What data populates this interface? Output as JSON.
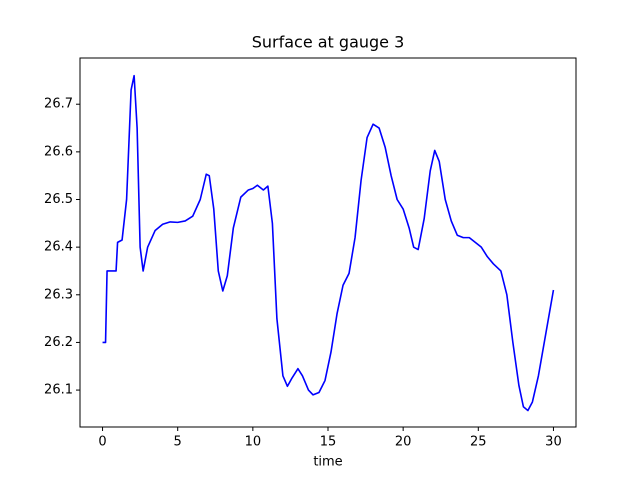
{
  "chart_data": {
    "type": "line",
    "title": "Surface at gauge 3",
    "xlabel": "time",
    "color": "#0000ff",
    "x": [
      0,
      0.2,
      0.3,
      0.9,
      1.0,
      1.3,
      1.6,
      1.9,
      2.1,
      2.3,
      2.5,
      2.7,
      3.0,
      3.5,
      4.0,
      4.5,
      5.0,
      5.5,
      6.0,
      6.5,
      6.9,
      7.1,
      7.4,
      7.7,
      8.0,
      8.3,
      8.7,
      9.2,
      9.7,
      10.0,
      10.3,
      10.7,
      11.0,
      11.3,
      11.6,
      12.0,
      12.3,
      12.6,
      13.0,
      13.3,
      13.7,
      14.0,
      14.4,
      14.8,
      15.2,
      15.6,
      16.0,
      16.4,
      16.8,
      17.2,
      17.6,
      18.0,
      18.4,
      18.8,
      19.2,
      19.6,
      20.0,
      20.4,
      20.7,
      21.0,
      21.4,
      21.8,
      22.1,
      22.4,
      22.8,
      23.2,
      23.6,
      24.0,
      24.4,
      24.8,
      25.2,
      25.6,
      26.0,
      26.5,
      26.9,
      27.3,
      27.7,
      28.0,
      28.3,
      28.6,
      29.0,
      29.5,
      30.0
    ],
    "values": [
      26.2,
      26.2,
      26.35,
      26.35,
      26.41,
      26.415,
      26.5,
      26.73,
      26.76,
      26.65,
      26.4,
      26.35,
      26.4,
      26.435,
      26.448,
      26.453,
      26.452,
      26.455,
      26.465,
      26.5,
      26.553,
      26.55,
      26.48,
      26.35,
      26.308,
      26.34,
      26.44,
      26.505,
      26.52,
      26.523,
      26.53,
      26.52,
      26.528,
      26.45,
      26.25,
      26.13,
      26.108,
      26.125,
      26.145,
      26.13,
      26.1,
      26.09,
      26.095,
      26.12,
      26.18,
      26.26,
      26.32,
      26.345,
      26.42,
      26.54,
      26.63,
      26.658,
      26.65,
      26.61,
      26.55,
      26.5,
      26.48,
      26.44,
      26.4,
      26.395,
      26.46,
      26.56,
      26.603,
      26.58,
      26.5,
      26.455,
      26.425,
      26.42,
      26.42,
      26.41,
      26.4,
      26.38,
      26.365,
      26.35,
      26.3,
      26.2,
      26.11,
      26.065,
      26.057,
      26.075,
      26.13,
      26.22,
      26.31
    ],
    "xlim": [
      -1.5,
      31.5
    ],
    "ylim": [
      26.0225,
      26.797
    ],
    "xticks": [
      0,
      5,
      10,
      15,
      20,
      25,
      30
    ],
    "yticks": [
      26.1,
      26.2,
      26.3,
      26.4,
      26.5,
      26.6,
      26.7
    ]
  }
}
